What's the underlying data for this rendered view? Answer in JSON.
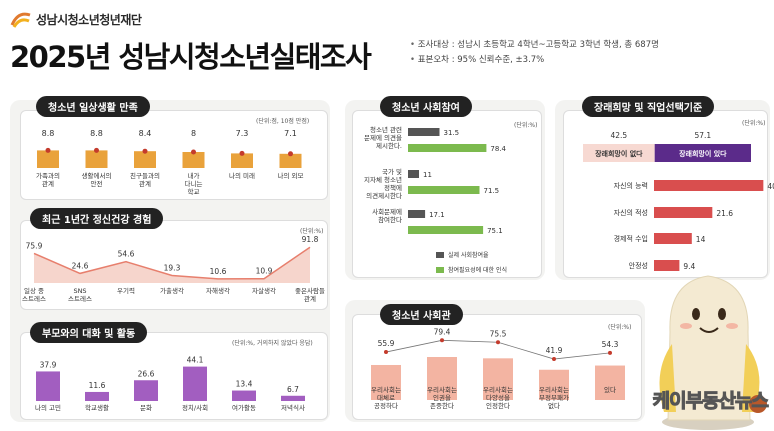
{
  "header": {
    "logo_text": "성남시청소년청년재단",
    "title": "2025년 성남시청소년실태조사",
    "notes": [
      "조사대상 : 성남시 초등학교 4학년~고등학교 3학년 학생, 총 687명",
      "표본오차 : 95% 신뢰수준, ±3.7%"
    ]
  },
  "panels": {
    "p1": {
      "title": "청소년 일상생활 만족",
      "unit": "(단위:점, 10점 만점)"
    },
    "p2": {
      "title": "최근 1년간 정신건강 경험",
      "unit": "(단위:%)"
    },
    "p3": {
      "title": "부모와의 대화 및 활동",
      "unit": "(단위:%, 거의하지 않았다 응답)"
    },
    "p4": {
      "title": "청소년 사회참여",
      "unit": "(단위:%)"
    },
    "p5": {
      "title": "장래희망 및 직업선택기준",
      "unit": "(단위:%)"
    },
    "p6": {
      "title": "청소년 사회관",
      "unit": "(단위:%)"
    }
  },
  "legend": {
    "actual": "실제 사회참여율",
    "need": "참여필요성에 대한 인식"
  },
  "watermark": "케이부동산뉴스",
  "colors": {
    "orange": "#e9a23b",
    "pink": "#e77f6d",
    "purple": "#a25ec0",
    "gray": "#555555",
    "green": "#7cba4e",
    "red": "#d94e4e",
    "lavender": "#5b2b8a"
  },
  "chart_data": [
    {
      "type": "bar",
      "title": "청소년 일상생활 만족",
      "categories": [
        "가족과의 관계",
        "생활에서의 안전",
        "친구들과의 관계",
        "내가 다니는 학교",
        "나의 미래",
        "나의 외모"
      ],
      "values": [
        8.8,
        8.8,
        8.4,
        8,
        7.3,
        7.1
      ],
      "ylim": [
        0,
        10
      ]
    },
    {
      "type": "area",
      "title": "최근 1년간 정신건강 경험",
      "categories": [
        "일상 중 스트레스",
        "SNS 스트레스",
        "우기력",
        "가출생각",
        "자해생각",
        "자살생각",
        "좋은사람들 관계"
      ],
      "values": [
        75.9,
        24.6,
        54.6,
        19.3,
        10.6,
        10.9,
        91.8
      ],
      "ylim": [
        0,
        100
      ]
    },
    {
      "type": "bar",
      "title": "부모와의 대화 및 활동",
      "categories": [
        "나의 고민",
        "학교생활",
        "문화",
        "정치/사회",
        "여가활동",
        "저녁식사"
      ],
      "values": [
        37.9,
        11.6,
        26.6,
        44.1,
        13.4,
        6.7
      ],
      "ylim": [
        0,
        50
      ]
    },
    {
      "type": "bar",
      "title": "청소년 사회참여",
      "categories": [
        "청소년 관련 문제에 의견을 제시한다.",
        "국가 및 지자체 청소년 정책에 의견제시한다",
        "사회문제에 참여한다"
      ],
      "series": [
        {
          "name": "실제 사회참여율",
          "values": [
            31.5,
            11,
            17.1
          ]
        },
        {
          "name": "참여필요성에 대한 인식",
          "values": [
            78.4,
            71.5,
            75.1
          ]
        }
      ],
      "xlim": [
        0,
        100
      ]
    },
    {
      "type": "bar",
      "title": "장래희망 및 직업선택기준",
      "split": {
        "categories": [
          "장래희망이 없다",
          "장래희망이 있다"
        ],
        "values": [
          42.5,
          57.1
        ]
      },
      "categories": [
        "자신의 능력",
        "자신의 적성",
        "경제적 수입",
        "안정성"
      ],
      "values": [
        40.5,
        21.6,
        14,
        9.4
      ],
      "xlim": [
        0,
        50
      ]
    },
    {
      "type": "bar",
      "title": "청소년 사회관",
      "categories": [
        "우리사회는 대체로 공정하다",
        "우리사회는 인권을 존중한다",
        "우리사회는 다양성을 인정한다",
        "우리사회는 부정부패가 없다",
        "우리사회는 안전하다"
      ],
      "visible_labels": [
        "우리사회는 대체로 공정하다",
        "우리사회는 인권을 존중한다",
        "우리사회는 다양성을 인정한다",
        "우리사회는 부정부패가 없다",
        "있다"
      ],
      "values": [
        55.9,
        79.4,
        75.5,
        41.9,
        54.3
      ],
      "ylim": [
        0,
        100
      ]
    }
  ]
}
